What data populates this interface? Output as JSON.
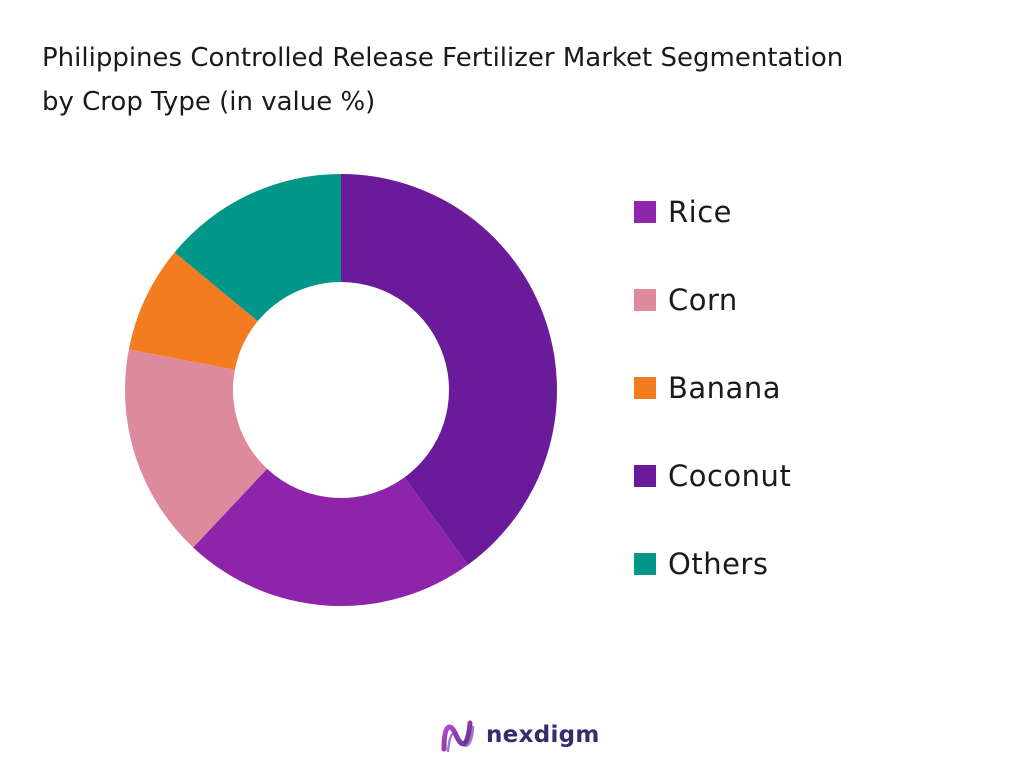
{
  "chart_data": {
    "type": "pie",
    "variant": "donut",
    "title": "Philippines Controlled Release Fertilizer Market Segmentation by Crop Type (in value %)",
    "title_lines": [
      "Philippines Controlled Release Fertilizer Market Segmentation",
      "by Crop Type (in value %)"
    ],
    "legend_position": "right",
    "slices": [
      {
        "label": "Coconut",
        "value": 40,
        "color": "#6a1b9a"
      },
      {
        "label": "Rice",
        "value": 22,
        "color": "#8e24aa"
      },
      {
        "label": "Corn",
        "value": 16,
        "color": "#de8a9d"
      },
      {
        "label": "Banana",
        "value": 8,
        "color": "#f47c20"
      },
      {
        "label": "Others",
        "value": 14,
        "color": "#009688"
      }
    ],
    "legend": [
      {
        "label": "Rice",
        "color": "#8e24aa"
      },
      {
        "label": "Corn",
        "color": "#de8a9d"
      },
      {
        "label": "Banana",
        "color": "#f47c20"
      },
      {
        "label": "Coconut",
        "color": "#6a1b9a"
      },
      {
        "label": "Others",
        "color": "#009688"
      }
    ]
  },
  "brand": {
    "name": "nexdigm",
    "logo_icon": "nexdigm-logo-icon",
    "color": "#3b2a6b"
  }
}
